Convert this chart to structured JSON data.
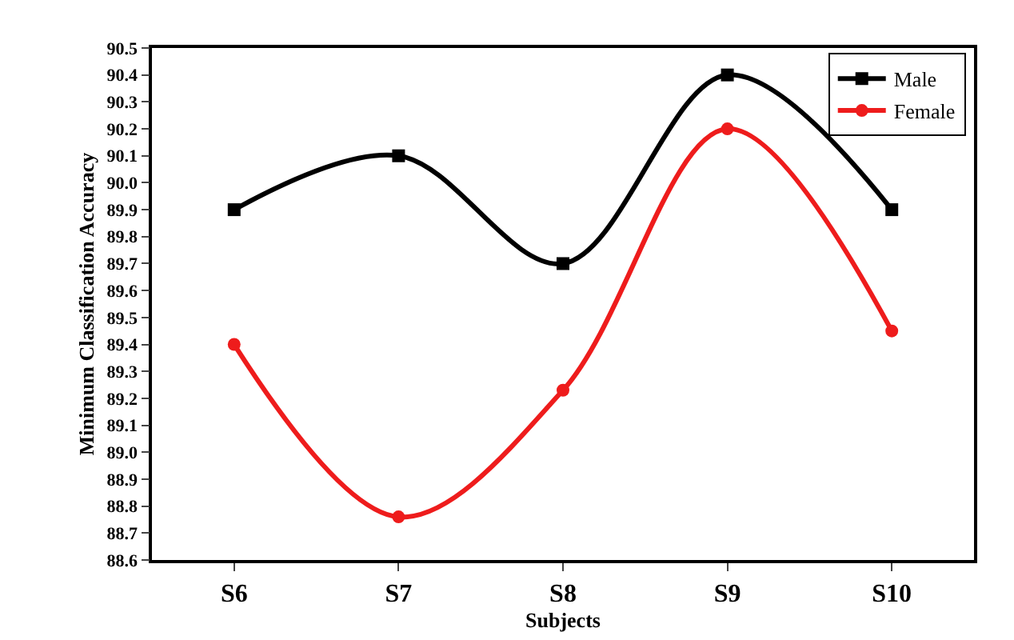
{
  "chart_data": {
    "type": "line",
    "xlabel": "Subjects",
    "ylabel": "Minimum Classification Accuracy",
    "categories": [
      "S6",
      "S7",
      "S8",
      "S9",
      "S10"
    ],
    "series": [
      {
        "name": "Male",
        "color": "#000000",
        "marker": "square",
        "values": [
          89.9,
          90.1,
          89.7,
          90.4,
          89.9
        ]
      },
      {
        "name": "Female",
        "color": "#ee1c1c",
        "marker": "circle",
        "values": [
          89.4,
          88.76,
          89.23,
          90.2,
          89.45
        ]
      }
    ],
    "ylim": [
      88.6,
      90.5
    ],
    "yticks": [
      88.6,
      88.7,
      88.8,
      88.9,
      {
        "value": 89,
        "label": "89.0"
      },
      89.1,
      89.2,
      89.3,
      89.4,
      89.5,
      89.6,
      89.7,
      89.8,
      89.9,
      {
        "value": 90,
        "label": "90.0"
      },
      90.1,
      90.2,
      90.3,
      90.4,
      90.5
    ],
    "line_style": "solid",
    "grid": false,
    "legend": "top right"
  }
}
